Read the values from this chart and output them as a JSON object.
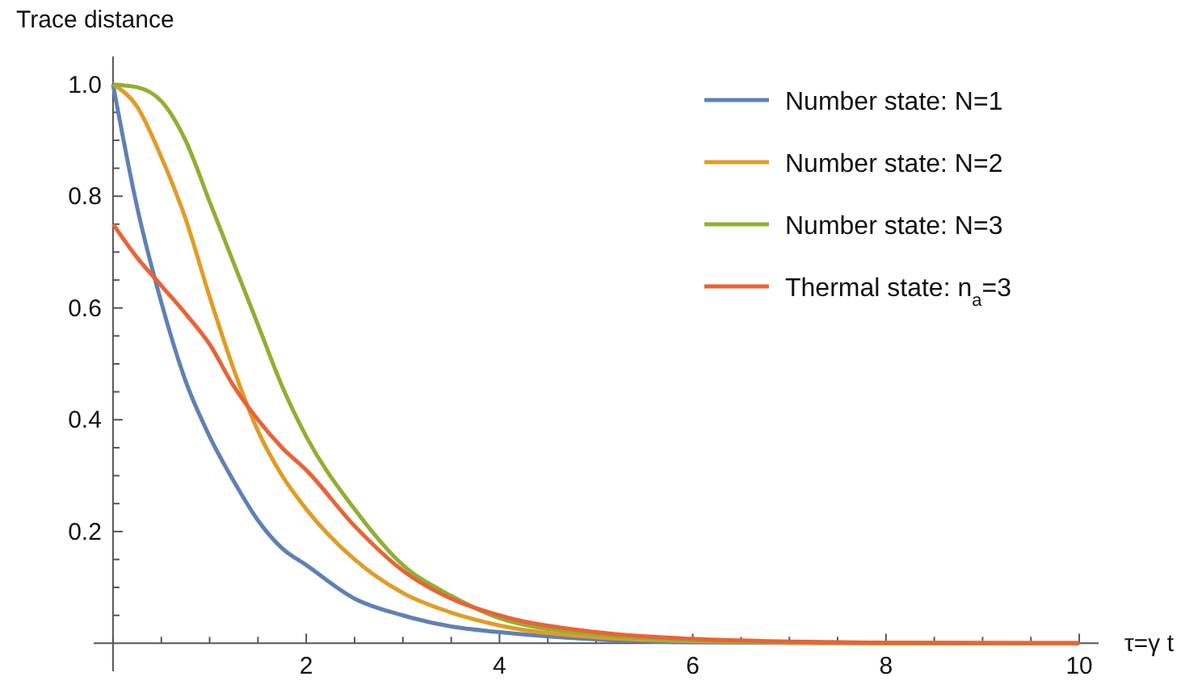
{
  "chart_data": {
    "type": "line",
    "xlabel": "τ=γ t",
    "ylabel": "Trace distance",
    "xlim": [
      -0.2,
      10.2
    ],
    "ylim": [
      -0.05,
      1.05
    ],
    "xticks": [
      {
        "value": 0,
        "label": null
      },
      {
        "value": 0.5,
        "label": null
      },
      {
        "value": 1,
        "label": null
      },
      {
        "value": 1.5,
        "label": null
      },
      2,
      {
        "value": 2.5,
        "label": null
      },
      {
        "value": 3,
        "label": null
      },
      {
        "value": 3.5,
        "label": null
      },
      4,
      {
        "value": 4.5,
        "label": null
      },
      {
        "value": 5,
        "label": null
      },
      {
        "value": 5.5,
        "label": null
      },
      6,
      {
        "value": 6.5,
        "label": null
      },
      {
        "value": 7,
        "label": null
      },
      {
        "value": 7.5,
        "label": null
      },
      8,
      {
        "value": 8.5,
        "label": null
      },
      {
        "value": 9,
        "label": null
      },
      {
        "value": 9.5,
        "label": null
      },
      10
    ],
    "yticks": [
      {
        "value": 0.05,
        "label": null
      },
      {
        "value": 0.1,
        "label": null
      },
      {
        "value": 0.15,
        "label": null
      },
      0.2,
      {
        "value": 0.25,
        "label": null
      },
      {
        "value": 0.3,
        "label": null
      },
      {
        "value": 0.35,
        "label": null
      },
      0.4,
      {
        "value": 0.45,
        "label": null
      },
      {
        "value": 0.5,
        "label": null
      },
      {
        "value": 0.55,
        "label": null
      },
      0.6,
      {
        "value": 0.65,
        "label": null
      },
      {
        "value": 0.7,
        "label": null
      },
      {
        "value": 0.75,
        "label": null
      },
      0.8,
      {
        "value": 0.85,
        "label": null
      },
      {
        "value": 0.9,
        "label": null
      },
      {
        "value": 0.95,
        "label": null
      },
      {
        "value": 1,
        "label": "1.0"
      }
    ],
    "x": [
      0,
      0.25,
      0.5,
      0.75,
      1,
      1.25,
      1.5,
      1.75,
      2,
      2.5,
      3,
      3.5,
      4,
      5,
      6,
      7,
      8,
      10
    ],
    "legend": "top right",
    "marker": "none",
    "line_style": "solid",
    "series": [
      {
        "name": "Number state: N=1",
        "color": "#5e81b5",
        "values": [
          1,
          0.78,
          0.61,
          0.47,
          0.37,
          0.29,
          0.22,
          0.17,
          0.14,
          0.08,
          0.05,
          0.03,
          0.02,
          0.007,
          0.002,
          0.001,
          0,
          0
        ]
      },
      {
        "name": "Number state: N=2",
        "color": "#e19c24",
        "values": [
          1,
          0.96,
          0.87,
          0.76,
          0.62,
          0.49,
          0.38,
          0.3,
          0.24,
          0.15,
          0.09,
          0.055,
          0.032,
          0.011,
          0.004,
          0.001,
          0,
          0
        ]
      },
      {
        "name": "Number state: N=3",
        "color": "#8fb032",
        "values": [
          1,
          0.995,
          0.97,
          0.9,
          0.79,
          0.68,
          0.57,
          0.46,
          0.37,
          0.24,
          0.14,
          0.085,
          0.045,
          0.016,
          0.006,
          0.002,
          0.001,
          0
        ]
      },
      {
        "name": "Thermal state: n$_{a}$=3",
        "color": "#eb6235",
        "values": [
          0.75,
          0.69,
          0.64,
          0.59,
          0.535,
          0.46,
          0.4,
          0.35,
          0.31,
          0.21,
          0.13,
          0.08,
          0.05,
          0.02,
          0.008,
          0.003,
          0.001,
          0
        ]
      }
    ]
  }
}
